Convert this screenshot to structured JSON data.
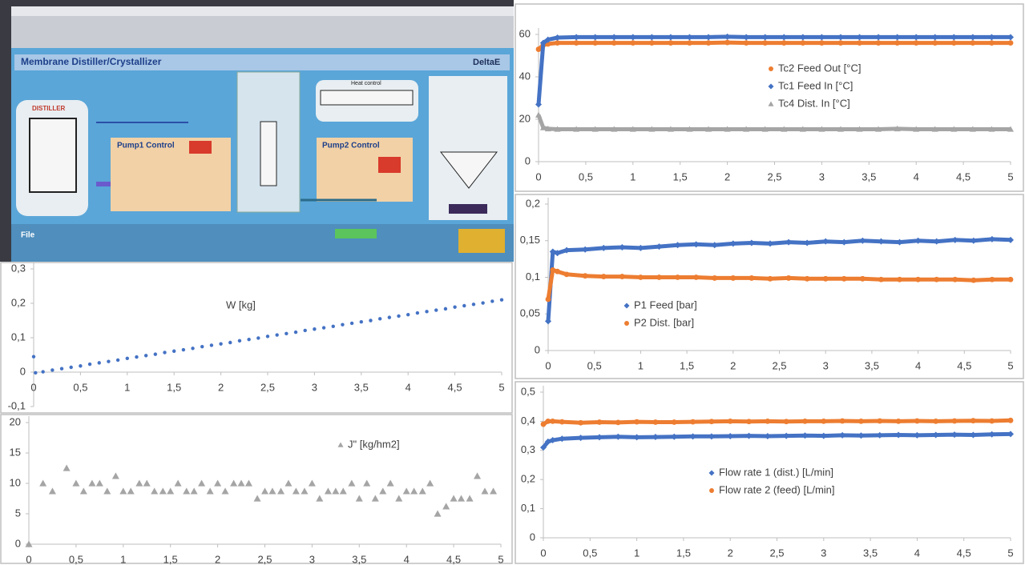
{
  "screenshot": {
    "title": "Membrane Distiller/Crystallizer",
    "brand": "DeltaE",
    "distiller": "DISTILLER",
    "pump1": "Pump1  Control",
    "pump2": "Pump2  Control",
    "heat": "Heat control",
    "file": "File"
  },
  "chart_data": [
    {
      "type": "line",
      "x": [
        0,
        0.05,
        0.1,
        0.2,
        0.4,
        0.6,
        0.8,
        1,
        1.2,
        1.4,
        1.6,
        1.8,
        2,
        2.2,
        2.4,
        2.6,
        2.8,
        3,
        3.2,
        3.4,
        3.6,
        3.8,
        4,
        4.2,
        4.4,
        4.6,
        4.8,
        5
      ],
      "series": [
        {
          "name": "Tc2 Feed Out [°C]",
          "color": "#ed7d31",
          "marker": "circle",
          "values": [
            53,
            55,
            55.5,
            56,
            56,
            56,
            56,
            56,
            56,
            56,
            56,
            56,
            56.2,
            56,
            56,
            56,
            56,
            56,
            56,
            56,
            56,
            56,
            56,
            56,
            56,
            56,
            56,
            56
          ]
        },
        {
          "name": "Tc1 Feed In [°C]",
          "color": "#4472c4",
          "marker": "diamond",
          "values": [
            27,
            56,
            57.5,
            58.5,
            58.7,
            58.7,
            58.7,
            58.7,
            58.7,
            58.7,
            58.7,
            58.7,
            58.9,
            58.7,
            58.7,
            58.7,
            58.7,
            58.7,
            58.7,
            58.7,
            58.7,
            58.7,
            58.7,
            58.7,
            58.7,
            58.7,
            58.7,
            58.7
          ]
        },
        {
          "name": "Tc4 Dist. In [°C]",
          "color": "#a5a5a5",
          "marker": "triangle",
          "values": [
            22,
            16,
            15.5,
            15.3,
            15.3,
            15.3,
            15.3,
            15.3,
            15.3,
            15.3,
            15.3,
            15.3,
            15.3,
            15.3,
            15.3,
            15.3,
            15.3,
            15.3,
            15.3,
            15.3,
            15.3,
            15.5,
            15.3,
            15.3,
            15.3,
            15.3,
            15.3,
            15.3
          ]
        }
      ],
      "xlim": [
        0,
        5
      ],
      "xticks": [
        0,
        {
          "value": 0.5,
          "label": "0,5"
        },
        1,
        {
          "value": 1.5,
          "label": "1,5"
        },
        2,
        {
          "value": 2.5,
          "label": "2,5"
        },
        3,
        {
          "value": 3.5,
          "label": "3,5"
        },
        4,
        {
          "value": 4.5,
          "label": "4,5"
        },
        5
      ],
      "ylim": [
        0,
        60
      ],
      "yticks": [
        0,
        20,
        40,
        60
      ]
    },
    {
      "type": "line",
      "x": [
        0,
        0.05,
        0.1,
        0.2,
        0.4,
        0.6,
        0.8,
        1,
        1.2,
        1.4,
        1.6,
        1.8,
        2,
        2.2,
        2.4,
        2.6,
        2.8,
        3,
        3.2,
        3.4,
        3.6,
        3.8,
        4,
        4.2,
        4.4,
        4.6,
        4.8,
        5
      ],
      "series": [
        {
          "name": "P1 Feed [bar]",
          "color": "#4472c4",
          "marker": "diamond",
          "values": [
            0.04,
            0.135,
            0.133,
            0.137,
            0.138,
            0.14,
            0.141,
            0.14,
            0.142,
            0.144,
            0.145,
            0.144,
            0.146,
            0.147,
            0.146,
            0.148,
            0.147,
            0.149,
            0.148,
            0.15,
            0.149,
            0.148,
            0.15,
            0.149,
            0.151,
            0.15,
            0.152,
            0.151
          ]
        },
        {
          "name": "P2 Dist. [bar]",
          "color": "#ed7d31",
          "marker": "circle",
          "values": [
            0.07,
            0.11,
            0.108,
            0.104,
            0.102,
            0.101,
            0.101,
            0.1,
            0.1,
            0.1,
            0.1,
            0.099,
            0.099,
            0.099,
            0.098,
            0.099,
            0.098,
            0.098,
            0.098,
            0.098,
            0.097,
            0.097,
            0.097,
            0.097,
            0.097,
            0.096,
            0.097,
            0.097
          ]
        }
      ],
      "xlim": [
        0,
        5
      ],
      "xticks": [
        0,
        {
          "value": 0.5,
          "label": "0,5"
        },
        1,
        {
          "value": 1.5,
          "label": "1,5"
        },
        2,
        {
          "value": 2.5,
          "label": "2,5"
        },
        3,
        {
          "value": 3.5,
          "label": "3,5"
        },
        4,
        {
          "value": 4.5,
          "label": "4,5"
        },
        5
      ],
      "ylim": [
        0,
        0.2
      ],
      "yticks": [
        0,
        {
          "value": 0.05,
          "label": "0,05"
        },
        {
          "value": 0.1,
          "label": "0,1"
        },
        {
          "value": 0.15,
          "label": "0,15"
        },
        {
          "value": 0.2,
          "label": "0,2"
        }
      ]
    },
    {
      "type": "line",
      "x": [
        0,
        0.05,
        0.1,
        0.2,
        0.4,
        0.6,
        0.8,
        1,
        1.2,
        1.4,
        1.6,
        1.8,
        2,
        2.2,
        2.4,
        2.6,
        2.8,
        3,
        3.2,
        3.4,
        3.6,
        3.8,
        4,
        4.2,
        4.4,
        4.6,
        4.8,
        5
      ],
      "series": [
        {
          "name": "Flow rate 1 (dist.) [L/min]",
          "color": "#4472c4",
          "marker": "diamond",
          "values": [
            0.31,
            0.33,
            0.335,
            0.34,
            0.343,
            0.345,
            0.347,
            0.345,
            0.346,
            0.347,
            0.348,
            0.348,
            0.349,
            0.35,
            0.349,
            0.35,
            0.351,
            0.35,
            0.352,
            0.351,
            0.352,
            0.353,
            0.352,
            0.353,
            0.354,
            0.353,
            0.355,
            0.356
          ]
        },
        {
          "name": "Flow rate 2 (feed) [L/min]",
          "color": "#ed7d31",
          "marker": "circle",
          "values": [
            0.39,
            0.4,
            0.4,
            0.398,
            0.395,
            0.397,
            0.396,
            0.398,
            0.397,
            0.397,
            0.398,
            0.399,
            0.4,
            0.399,
            0.4,
            0.399,
            0.4,
            0.4,
            0.401,
            0.4,
            0.401,
            0.4,
            0.401,
            0.4,
            0.401,
            0.402,
            0.401,
            0.403
          ]
        }
      ],
      "xlim": [
        0,
        5
      ],
      "xticks": [
        0,
        {
          "value": 0.5,
          "label": "0,5"
        },
        1,
        {
          "value": 1.5,
          "label": "1,5"
        },
        2,
        {
          "value": 2.5,
          "label": "2,5"
        },
        3,
        {
          "value": 3.5,
          "label": "3,5"
        },
        4,
        {
          "value": 4.5,
          "label": "4,5"
        },
        5
      ],
      "ylim": [
        0,
        0.5
      ],
      "yticks": [
        0,
        {
          "value": 0.1,
          "label": "0,1"
        },
        {
          "value": 0.2,
          "label": "0,2"
        },
        {
          "value": 0.3,
          "label": "0,3"
        },
        {
          "value": 0.4,
          "label": "0,4"
        },
        {
          "value": 0.5,
          "label": "0,5"
        }
      ]
    },
    {
      "type": "scatter",
      "x": [
        0,
        0.02,
        0.1,
        0.2,
        0.3,
        0.4,
        0.5,
        0.6,
        0.7,
        0.8,
        0.9,
        1,
        1.1,
        1.2,
        1.3,
        1.4,
        1.5,
        1.6,
        1.7,
        1.8,
        1.9,
        2,
        2.1,
        2.2,
        2.3,
        2.4,
        2.5,
        2.6,
        2.7,
        2.8,
        2.9,
        3,
        3.1,
        3.2,
        3.3,
        3.4,
        3.5,
        3.6,
        3.7,
        3.8,
        3.9,
        4,
        4.1,
        4.2,
        4.3,
        4.4,
        4.5,
        4.6,
        4.7,
        4.8,
        4.9,
        5
      ],
      "series": [
        {
          "name": "W [kg]",
          "color": "#4472c4",
          "marker": "circle",
          "legend_marker": false,
          "values": [
            0.045,
            -0.002,
            0.001,
            0.006,
            0.01,
            0.014,
            0.018,
            0.023,
            0.027,
            0.031,
            0.035,
            0.04,
            0.044,
            0.048,
            0.052,
            0.057,
            0.061,
            0.065,
            0.069,
            0.074,
            0.078,
            0.082,
            0.086,
            0.091,
            0.095,
            0.099,
            0.104,
            0.108,
            0.112,
            0.116,
            0.121,
            0.125,
            0.129,
            0.133,
            0.138,
            0.142,
            0.146,
            0.15,
            0.155,
            0.159,
            0.163,
            0.167,
            0.172,
            0.176,
            0.18,
            0.184,
            0.189,
            0.193,
            0.197,
            0.201,
            0.206,
            0.21
          ]
        }
      ],
      "xlim": [
        0,
        5
      ],
      "xticks": [
        0,
        {
          "value": 0.5,
          "label": "0,5"
        },
        1,
        {
          "value": 1.5,
          "label": "1,5"
        },
        2,
        {
          "value": 2.5,
          "label": "2,5"
        },
        3,
        {
          "value": 3.5,
          "label": "3,5"
        },
        4,
        {
          "value": 4.5,
          "label": "4,5"
        },
        5
      ],
      "ylim": [
        -0.1,
        0.3
      ],
      "yticks": [
        {
          "value": -0.1,
          "label": "-0,1"
        },
        0,
        {
          "value": 0.1,
          "label": "0,1"
        },
        {
          "value": 0.2,
          "label": "0,2"
        },
        {
          "value": 0.3,
          "label": "0,3"
        }
      ]
    },
    {
      "type": "scatter",
      "x": [
        0,
        0.15,
        0.25,
        0.4,
        0.5,
        0.58,
        0.67,
        0.75,
        0.83,
        0.92,
        1,
        1.08,
        1.17,
        1.25,
        1.33,
        1.42,
        1.5,
        1.58,
        1.67,
        1.75,
        1.83,
        1.92,
        2,
        2.08,
        2.17,
        2.25,
        2.33,
        2.42,
        2.5,
        2.58,
        2.67,
        2.75,
        2.83,
        2.92,
        3,
        3.08,
        3.17,
        3.25,
        3.33,
        3.42,
        3.5,
        3.58,
        3.67,
        3.75,
        3.83,
        3.92,
        4,
        4.08,
        4.17,
        4.25,
        4.33,
        4.42,
        4.5,
        4.58,
        4.67,
        4.75,
        4.83,
        4.92
      ],
      "series": [
        {
          "name": "J\" [kg/hm2]",
          "color": "#a5a5a5",
          "marker": "triangle",
          "values": [
            0,
            10,
            8.7,
            12.5,
            10,
            8.7,
            10,
            10,
            8.7,
            11.2,
            8.7,
            8.7,
            10,
            10,
            8.7,
            8.7,
            8.7,
            10,
            8.7,
            8.7,
            10,
            8.7,
            10,
            8.7,
            10,
            10,
            10,
            7.5,
            8.7,
            8.7,
            8.7,
            10,
            8.7,
            8.7,
            10,
            7.5,
            8.7,
            8.7,
            8.7,
            10,
            7.5,
            10,
            7.5,
            8.7,
            10,
            7.5,
            8.7,
            8.7,
            8.7,
            10,
            5,
            6.2,
            7.5,
            7.5,
            7.5,
            11.2,
            8.7,
            8.7
          ]
        }
      ],
      "xlim": [
        0,
        5
      ],
      "xticks": [
        0,
        {
          "value": 0.5,
          "label": "0,5"
        },
        1,
        {
          "value": 1.5,
          "label": "1,5"
        },
        2,
        {
          "value": 2.5,
          "label": "2,5"
        },
        3,
        {
          "value": 3.5,
          "label": "3,5"
        },
        4,
        {
          "value": 4.5,
          "label": "4,5"
        },
        5
      ],
      "ylim": [
        0,
        20
      ],
      "yticks": [
        0,
        5,
        10,
        15,
        20
      ]
    }
  ]
}
